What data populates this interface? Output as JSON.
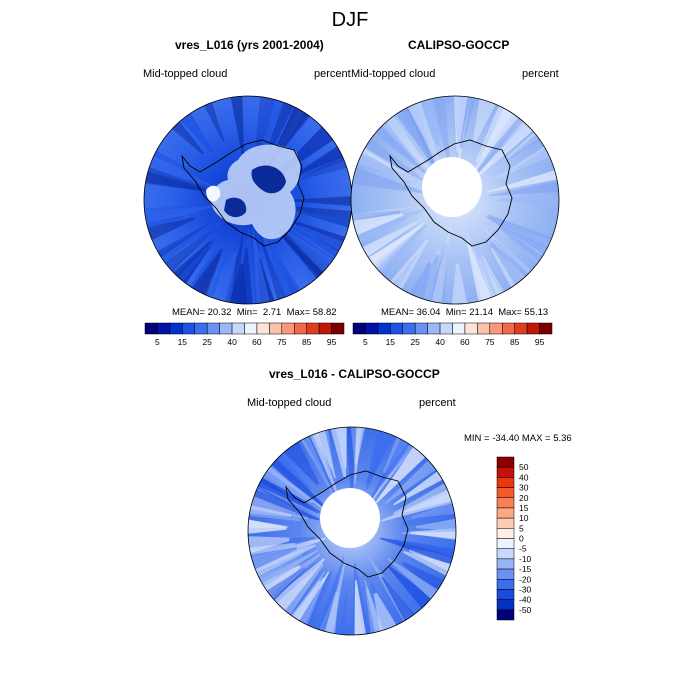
{
  "title": "DJF",
  "panels": [
    {
      "title": "vres_L016 (yrs 2001-2004)",
      "left_label": "Mid-topped cloud",
      "right_label": "percent",
      "stats": {
        "mean_label": "MEAN=",
        "mean": "20.32",
        "min_label": "Min=",
        "min": "2.71",
        "max_label": "Max=",
        "max": "58.82"
      }
    },
    {
      "title": "CALIPSO-GOCCP",
      "left_label": "Mid-topped cloud",
      "right_label": "percent",
      "stats": {
        "mean_label": "MEAN=",
        "mean": "36.04",
        "min_label": "Min=",
        "min": "21.14",
        "max_label": "Max=",
        "max": "55.13"
      }
    },
    {
      "title": "vres_L016 - CALIPSO-GOCCP",
      "left_label": "Mid-topped cloud",
      "right_label": "percent",
      "stats_text": "MIN = -34.40  MAX =   5.36"
    }
  ],
  "colorbar_abs": {
    "labels": [
      "5",
      "15",
      "25",
      "40",
      "60",
      "75",
      "85",
      "95"
    ],
    "colors": [
      "#00007a",
      "#0012a8",
      "#0033cc",
      "#1a52e6",
      "#3c6ef0",
      "#6a92f4",
      "#9ab8f8",
      "#c6d8fb",
      "#eef3fd",
      "#fde4d8",
      "#fbc2a8",
      "#f7987a",
      "#f06a48",
      "#e03c1e",
      "#c01808",
      "#7a0000"
    ]
  },
  "colorbar_diff": {
    "labels": [
      "50",
      "40",
      "30",
      "20",
      "15",
      "10",
      "5",
      "0",
      "-5",
      "-10",
      "-15",
      "-20",
      "-30",
      "-40",
      "-50"
    ],
    "colors": [
      "#8a0000",
      "#c4100a",
      "#e8380e",
      "#f35a2a",
      "#f78058",
      "#fba884",
      "#fdccb4",
      "#fdeee6",
      "#eef3fd",
      "#c6d8fb",
      "#98b6f6",
      "#6a92f4",
      "#3c6ef0",
      "#1a4ae0",
      "#0033c4",
      "#00007a"
    ]
  },
  "icons": {
    "continent": "antarctica-coastline"
  }
}
